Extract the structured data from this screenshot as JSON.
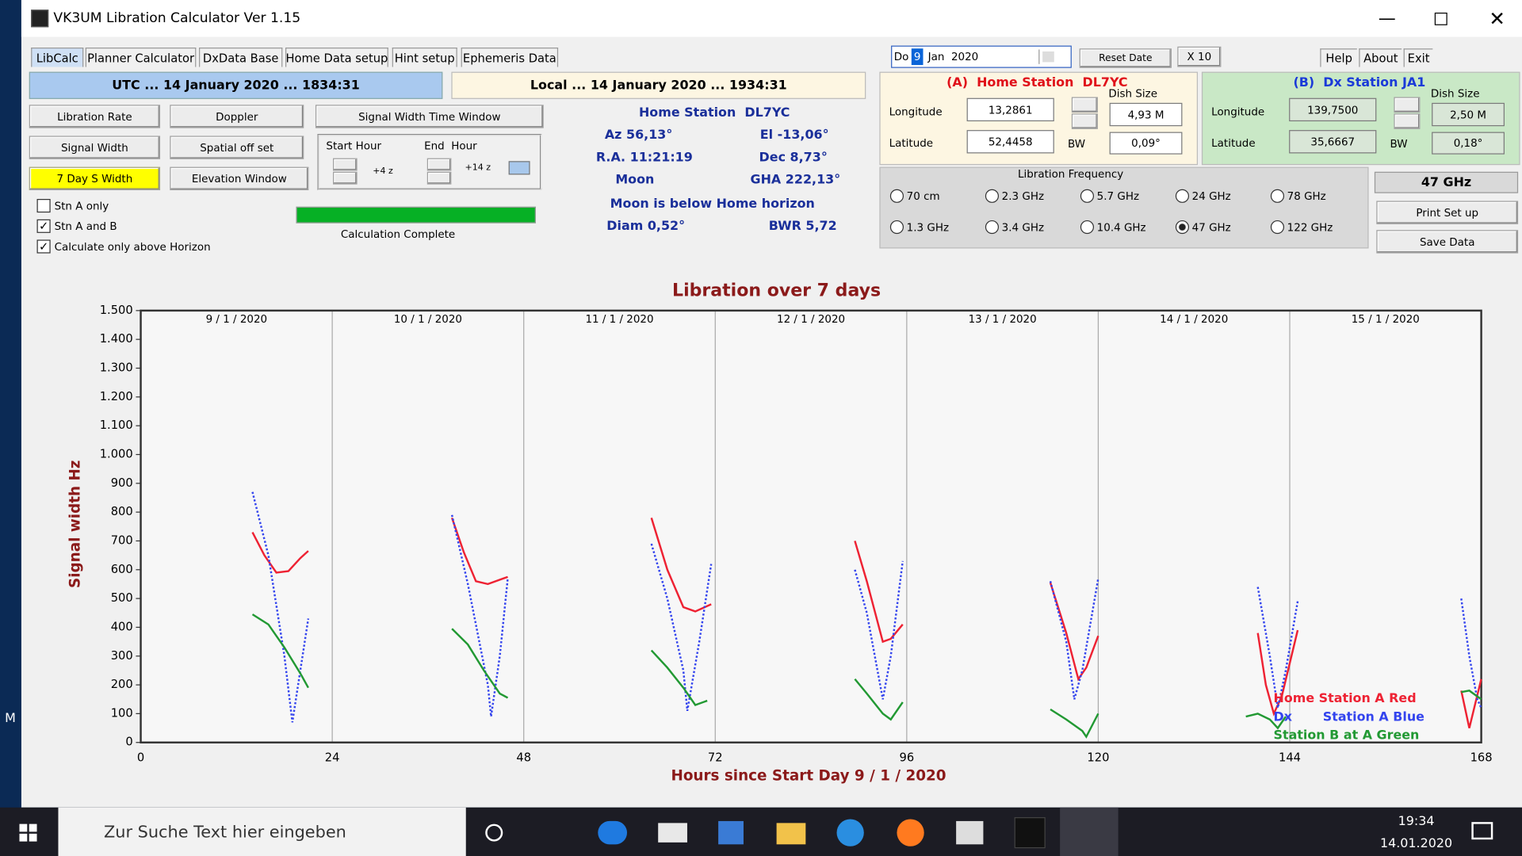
{
  "window": {
    "title": "VK3UM Libration Calculator Ver 1.15"
  },
  "desktop_text": "M",
  "tabs": [
    "LibCalc",
    "Planner Calculator",
    "DxData Base",
    "Home Data setup",
    "Hint setup",
    "Ephemeris Data"
  ],
  "date_picker": {
    "weekday": "Do",
    "day": "9",
    "month_year": "Jan  2020"
  },
  "menu": [
    "Help",
    "About",
    "Exit"
  ],
  "buttons": {
    "reset_date": "Reset Date",
    "x10": "X 10",
    "libration_rate": "Libration Rate",
    "doppler": "Doppler",
    "signal_width_time_window": "Signal Width Time Window",
    "signal_width": "Signal Width",
    "spatial_offset": "Spatial off set",
    "seven_day_s_width": "7 Day S Width",
    "elevation_window": "Elevation Window",
    "print_setup": "Print Set up",
    "save_data": "Save Data"
  },
  "utc": "UTC ... 14 January 2020 ... 1834:31",
  "local": "Local ... 14 January 2020 ... 1934:31",
  "time_window": {
    "start_hour": "Start Hour",
    "end_hour": "End  Hour",
    "start_offset": "+4 z",
    "end_offset": "+14 z"
  },
  "checkboxes": [
    {
      "label": "Stn A only",
      "checked": false
    },
    {
      "label": "Stn A and B",
      "checked": true
    },
    {
      "label": "Calculate only above Horizon",
      "checked": true
    }
  ],
  "status": "Calculation Complete",
  "moon_info": {
    "station": "Home Station  DL7YC",
    "az": "Az 56,13°",
    "el": "El -13,06°",
    "ra": "R.A. 11:21:19",
    "dec": "Dec 8,73°",
    "moon": "Moon",
    "gha": "GHA 222,13°",
    "horizon": "Moon is below Home horizon",
    "diam": "Diam 0,52°",
    "bwr": "BWR 5,72"
  },
  "home_station": {
    "title": "(A)  Home Station  DL7YC",
    "longitude_label": "Longitude",
    "longitude": "13,2861",
    "latitude_label": "Latitude",
    "latitude": "52,4458",
    "dish_size_label": "Dish Size",
    "dish_size": "4,93 M",
    "bw_label": "BW",
    "bw": "0,09°"
  },
  "dx_station": {
    "title": "(B)  Dx Station JA1",
    "longitude_label": "Longitude",
    "longitude": "139,7500",
    "latitude_label": "Latitude",
    "latitude": "35,6667",
    "dish_size_label": "Dish Size",
    "dish_size": "2,50 M",
    "bw_label": "BW",
    "bw": "0,18°"
  },
  "frequency": {
    "title": "Libration Frequency",
    "options": [
      "70 cm",
      "2.3 GHz",
      "5.7 GHz",
      "24 GHz",
      "78 GHz",
      "1.3 GHz",
      "3.4 GHz",
      "10.4 GHz",
      "47 GHz",
      "122 GHz"
    ],
    "selected": "47 GHz"
  },
  "chart_data": {
    "type": "line",
    "title": "Libration over 7 days",
    "y_label": "Signal width Hz",
    "x_label": "Hours since Start Day 9 / 1 / 2020",
    "day_labels": [
      "9 / 1 / 2020",
      "10 / 1 / 2020",
      "11 / 1 / 2020",
      "12 / 1 / 2020",
      "13 / 1 / 2020",
      "14 / 1 / 2020",
      "15 / 1 / 2020"
    ],
    "xlim": [
      0,
      168
    ],
    "xticks": [
      0,
      24,
      48,
      72,
      96,
      120,
      144,
      168
    ],
    "ylim": [
      0,
      1500
    ],
    "yticks": [
      0,
      100,
      200,
      300,
      400,
      500,
      600,
      700,
      800,
      900,
      {
        "value": 1000,
        "label": "1.000"
      },
      {
        "value": 1100,
        "label": "1.100"
      },
      {
        "value": 1200,
        "label": "1.200"
      },
      {
        "value": 1300,
        "label": "1.300"
      },
      {
        "value": 1400,
        "label": "1.400"
      },
      {
        "value": 1500,
        "label": "1.500"
      }
    ],
    "grid_x": true,
    "series": [
      {
        "name": "Home Station A Red",
        "color": "#ee2233",
        "x": [
          14,
          15.5,
          17,
          18.5,
          20,
          21,
          null,
          39,
          40.5,
          42,
          43.5,
          46,
          null,
          64,
          66,
          68,
          69.5,
          71.5,
          null,
          89.5,
          91,
          93,
          94,
          95.5,
          null,
          114,
          116,
          117.5,
          118.5,
          120,
          null,
          140,
          141,
          142,
          143,
          145,
          null,
          165.5,
          166.5,
          168
        ],
        "values": [
          730,
          650,
          590,
          595,
          640,
          665,
          null,
          780,
          660,
          560,
          550,
          575,
          null,
          780,
          600,
          470,
          455,
          480,
          null,
          700,
          560,
          350,
          360,
          410,
          null,
          555,
          380,
          220,
          260,
          370,
          null,
          380,
          200,
          100,
          160,
          390,
          null,
          180,
          50,
          220
        ]
      },
      {
        "name": "Dx       Station A Blue",
        "color": "#3344ee",
        "x": [
          14,
          16,
          18,
          19,
          20,
          21,
          null,
          39,
          41,
          43.5,
          43.9,
          45,
          46,
          null,
          64,
          66,
          68,
          68.5,
          70,
          71.5,
          null,
          89.5,
          91,
          93,
          94,
          95.5,
          null,
          114,
          116,
          117,
          118,
          120,
          null,
          140,
          141.5,
          142.5,
          143.5,
          145,
          null,
          165.5,
          166.5,
          167.5,
          168
        ],
        "values": [
          870,
          650,
          300,
          70,
          250,
          430,
          null,
          790,
          550,
          200,
          90,
          300,
          570,
          null,
          690,
          500,
          250,
          110,
          350,
          620,
          null,
          600,
          450,
          150,
          300,
          630,
          null,
          560,
          350,
          150,
          250,
          570,
          null,
          540,
          300,
          120,
          250,
          490,
          null,
          500,
          300,
          150,
          120
        ]
      },
      {
        "name": "Station B at A Green",
        "color": "#229933",
        "x": [
          14,
          16,
          18,
          20,
          21,
          null,
          39,
          41,
          43,
          45,
          46,
          null,
          64,
          66,
          68,
          69.5,
          71,
          null,
          89.5,
          91,
          93,
          94,
          95.5,
          null,
          114,
          116,
          118,
          118.5,
          120,
          null,
          138.5,
          140,
          141.5,
          142.5,
          143.5,
          null,
          165.5,
          166.5,
          167.5,
          168
        ],
        "values": [
          445,
          410,
          330,
          240,
          190,
          null,
          395,
          340,
          250,
          170,
          155,
          null,
          320,
          260,
          190,
          130,
          145,
          null,
          220,
          170,
          100,
          80,
          140,
          null,
          115,
          80,
          40,
          20,
          100,
          null,
          90,
          100,
          80,
          50,
          90,
          null,
          175,
          180,
          160,
          150
        ]
      }
    ]
  },
  "taskbar": {
    "search": "Zur Suche Text hier eingeben",
    "time": "19:34",
    "date": "14.01.2020"
  }
}
